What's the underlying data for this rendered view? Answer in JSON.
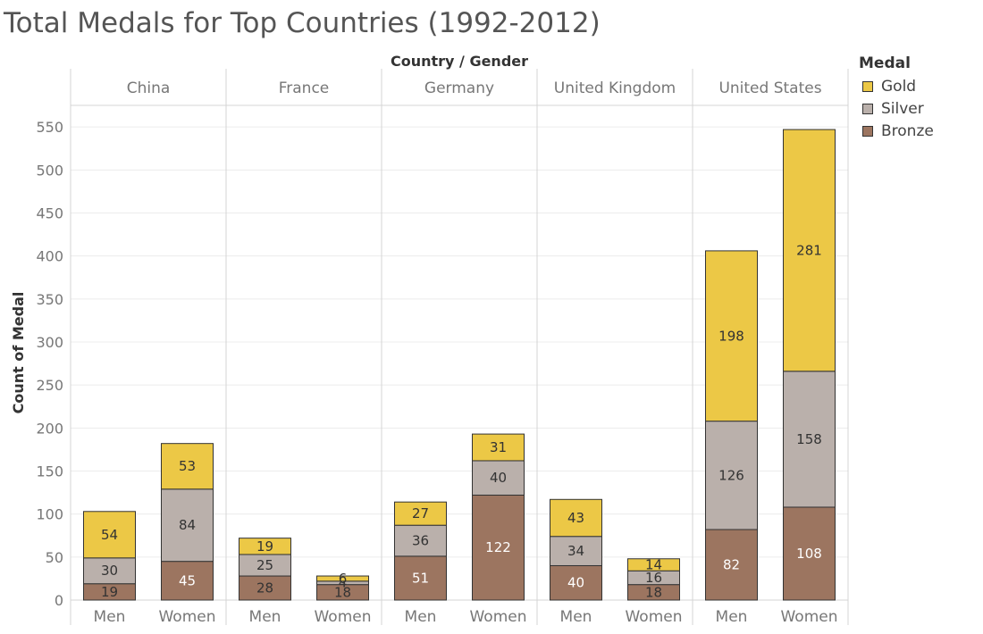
{
  "chart_data": {
    "type": "bar",
    "stacked": true,
    "title": "Total Medals for Top Countries (1992-2012)",
    "header_label": "Country / Gender",
    "ylabel": "Count of Medal",
    "ylim": [
      0,
      570
    ],
    "yticks": [
      0,
      50,
      100,
      150,
      200,
      250,
      300,
      350,
      400,
      450,
      500,
      550
    ],
    "grid": true,
    "legend": {
      "title": "Medal",
      "position": "top-right",
      "items": [
        {
          "name": "Gold",
          "color": "#ecc846"
        },
        {
          "name": "Silver",
          "color": "#bab0ab"
        },
        {
          "name": "Bronze",
          "color": "#9c7560"
        }
      ]
    },
    "groups": [
      {
        "country": "China",
        "bars": [
          {
            "gender": "Men",
            "bronze": 19,
            "silver": 30,
            "gold": 54
          },
          {
            "gender": "Women",
            "bronze": 45,
            "silver": 84,
            "gold": 53
          }
        ]
      },
      {
        "country": "France",
        "bars": [
          {
            "gender": "Men",
            "bronze": 28,
            "silver": 25,
            "gold": 19
          },
          {
            "gender": "Women",
            "bronze": 18,
            "silver": 4,
            "gold": 6
          }
        ]
      },
      {
        "country": "Germany",
        "bars": [
          {
            "gender": "Men",
            "bronze": 51,
            "silver": 36,
            "gold": 27
          },
          {
            "gender": "Women",
            "bronze": 122,
            "silver": 40,
            "gold": 31
          }
        ]
      },
      {
        "country": "United Kingdom",
        "bars": [
          {
            "gender": "Men",
            "bronze": 40,
            "silver": 34,
            "gold": 43
          },
          {
            "gender": "Women",
            "bronze": 18,
            "silver": 16,
            "gold": 14
          }
        ]
      },
      {
        "country": "United States",
        "bars": [
          {
            "gender": "Men",
            "bronze": 82,
            "silver": 126,
            "gold": 198
          },
          {
            "gender": "Women",
            "bronze": 108,
            "silver": 158,
            "gold": 281
          }
        ]
      }
    ]
  }
}
